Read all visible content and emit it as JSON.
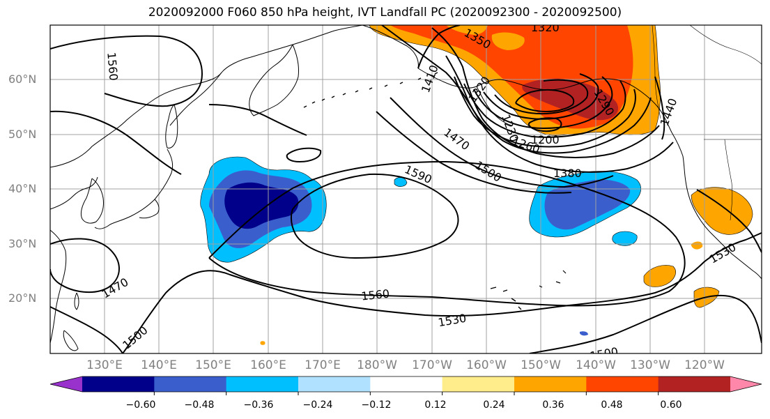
{
  "title": "2020092000 F060 850 hPa height, IVT Landfall PC (2020092300 - 2020092500)",
  "map": {
    "lat_labels": [
      "60°N",
      "50°N",
      "40°N",
      "30°N",
      "20°N"
    ],
    "lon_labels": [
      "130°E",
      "140°E",
      "150°E",
      "160°E",
      "170°E",
      "180°W",
      "170°W",
      "160°W",
      "150°W",
      "140°W",
      "130°W",
      "120°W"
    ],
    "contour_labels": [
      "1560",
      "1350",
      "1320",
      "1410",
      "1320",
      "1290",
      "1230",
      "1200",
      "1260",
      "1470",
      "1500",
      "1590",
      "1380",
      "1440",
      "1470",
      "1500",
      "1560",
      "1530",
      "1530",
      "1500"
    ],
    "colors": {
      "coast": "#000000",
      "grid": "#a0a0a0",
      "contour": "#000000"
    }
  },
  "colorbar": {
    "colors": [
      "#9932cc",
      "#00008b",
      "#3a5fcd",
      "#00bfff",
      "#b0e2ff",
      "#ffffff",
      "#ffec8b",
      "#ffa500",
      "#ff4500",
      "#b22222",
      "#ff88aa"
    ],
    "tick_labels": [
      "−0.60",
      "−0.48",
      "−0.36",
      "−0.24",
      "−0.12",
      "0.12",
      "0.24",
      "0.36",
      "0.48",
      "0.60"
    ]
  }
}
